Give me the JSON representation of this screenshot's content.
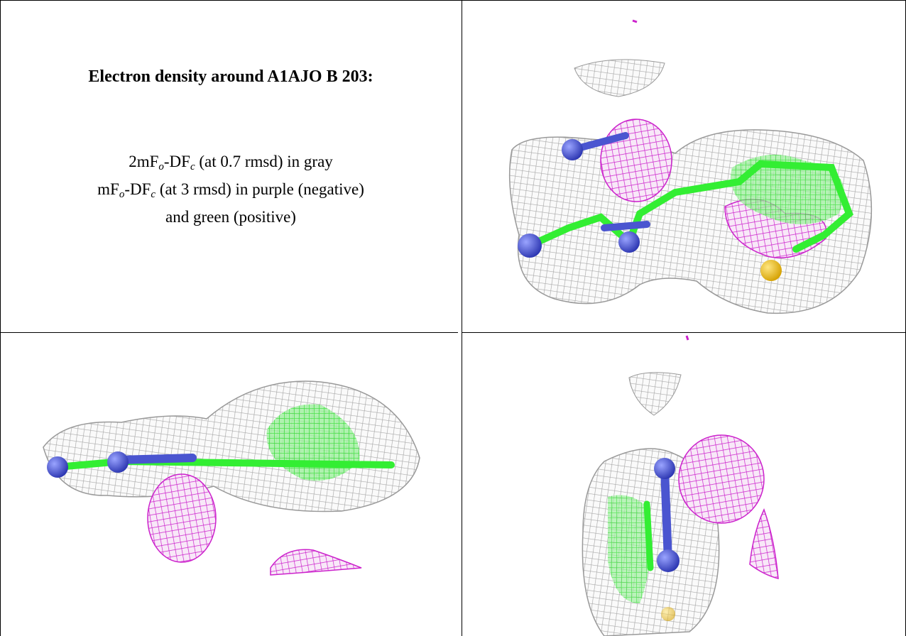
{
  "title": "Electron density around A1AJO B 203:",
  "legend": {
    "lines": [
      [
        "2mF",
        {
          "sub": "o"
        },
        "-DF",
        {
          "sub": "c"
        },
        " (at 0.7 rmsd) in gray"
      ],
      [
        "mF",
        {
          "sub": "o"
        },
        "-DF",
        {
          "sub": "c"
        },
        " (at 3 rmsd) in purple (negative)"
      ],
      [
        "and green (positive)"
      ]
    ]
  }
}
